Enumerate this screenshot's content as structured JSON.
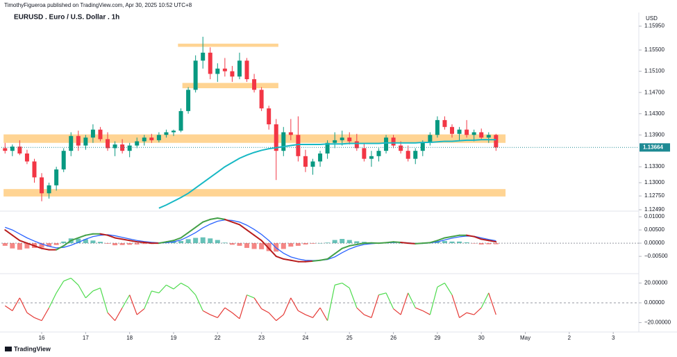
{
  "header": {
    "byline": "TimothyFigueroa published on TradingView.com, Apr 30, 2025 10:52 UTC+8",
    "currency": "USD",
    "footer": "TradingView"
  },
  "chart_data": [
    {
      "type": "candlestick",
      "title": "EURUSD . Euro / U.S. Dollar . 1h",
      "open": [
        1.1365,
        1.136,
        1.1368,
        1.1355,
        1.134,
        1.131,
        1.128,
        1.1295,
        1.1325,
        1.136,
        1.1388,
        1.137,
        1.1385,
        1.14,
        1.1382,
        1.1365,
        1.1372,
        1.136,
        1.137,
        1.1378,
        1.1385,
        1.138,
        1.139,
        1.1395,
        1.1398,
        1.1435,
        1.1475,
        1.153,
        1.1545,
        1.1505,
        1.1515,
        1.151,
        1.15,
        1.153,
        1.1495,
        1.1475,
        1.144,
        1.141,
        1.136,
        1.1395,
        1.139,
        1.135,
        1.133,
        1.134,
        1.1355,
        1.1375,
        1.138,
        1.1385,
        1.1378,
        1.1365,
        1.1345,
        1.135,
        1.136,
        1.1385,
        1.137,
        1.136,
        1.1345,
        1.136,
        1.1375,
        1.139,
        1.1418,
        1.1405,
        1.1392,
        1.14,
        1.139,
        1.1395,
        1.1385,
        1.139
      ],
      "high": [
        1.1375,
        1.1372,
        1.138,
        1.1362,
        1.1345,
        1.1318,
        1.13,
        1.133,
        1.1365,
        1.1395,
        1.1398,
        1.139,
        1.141,
        1.1405,
        1.1395,
        1.1378,
        1.1382,
        1.1375,
        1.1385,
        1.139,
        1.1392,
        1.1395,
        1.14,
        1.14,
        1.144,
        1.148,
        1.154,
        1.1575,
        1.1555,
        1.1525,
        1.1535,
        1.152,
        1.1545,
        1.1535,
        1.1505,
        1.148,
        1.1445,
        1.142,
        1.1405,
        1.142,
        1.1425,
        1.1362,
        1.1345,
        1.136,
        1.138,
        1.1395,
        1.1398,
        1.1395,
        1.1392,
        1.1375,
        1.136,
        1.1365,
        1.139,
        1.139,
        1.1378,
        1.137,
        1.1365,
        1.138,
        1.1395,
        1.1425,
        1.1425,
        1.141,
        1.1405,
        1.1418,
        1.14,
        1.1402,
        1.1395,
        1.1392
      ],
      "low": [
        1.1355,
        1.135,
        1.1352,
        1.1335,
        1.13,
        1.1265,
        1.127,
        1.1285,
        1.132,
        1.135,
        1.136,
        1.1362,
        1.1375,
        1.1378,
        1.136,
        1.135,
        1.1355,
        1.1348,
        1.1365,
        1.137,
        1.1375,
        1.1376,
        1.1385,
        1.1388,
        1.1395,
        1.143,
        1.147,
        1.1515,
        1.1495,
        1.149,
        1.15,
        1.149,
        1.1495,
        1.149,
        1.147,
        1.1435,
        1.14,
        1.1305,
        1.135,
        1.138,
        1.134,
        1.132,
        1.1315,
        1.133,
        1.1345,
        1.1365,
        1.137,
        1.1372,
        1.136,
        1.134,
        1.133,
        1.134,
        1.1355,
        1.1365,
        1.1355,
        1.134,
        1.1335,
        1.135,
        1.137,
        1.1385,
        1.14,
        1.1385,
        1.138,
        1.1385,
        1.1378,
        1.138,
        1.1375,
        1.136
      ],
      "close": [
        1.136,
        1.1368,
        1.1355,
        1.134,
        1.131,
        1.128,
        1.1295,
        1.1325,
        1.136,
        1.1388,
        1.137,
        1.1385,
        1.14,
        1.1382,
        1.1365,
        1.1372,
        1.136,
        1.137,
        1.1378,
        1.1385,
        1.138,
        1.139,
        1.1395,
        1.1398,
        1.1435,
        1.1475,
        1.153,
        1.1545,
        1.1505,
        1.1515,
        1.151,
        1.15,
        1.153,
        1.1495,
        1.1475,
        1.144,
        1.141,
        1.136,
        1.1395,
        1.139,
        1.135,
        1.133,
        1.134,
        1.1355,
        1.1375,
        1.138,
        1.1385,
        1.1378,
        1.1365,
        1.1345,
        1.135,
        1.136,
        1.1385,
        1.137,
        1.136,
        1.1345,
        1.136,
        1.1375,
        1.139,
        1.1418,
        1.1405,
        1.1392,
        1.14,
        1.139,
        1.1395,
        1.1385,
        1.139,
        1.13664
      ],
      "up_color": "#089981",
      "down_color": "#f23645",
      "ma": {
        "color": "#17b8c4",
        "values": [
          null,
          null,
          null,
          null,
          null,
          null,
          null,
          null,
          null,
          null,
          null,
          null,
          null,
          null,
          null,
          null,
          null,
          null,
          null,
          null,
          null,
          1.1252,
          1.1258,
          1.1265,
          1.1272,
          1.128,
          1.129,
          1.13,
          1.131,
          1.132,
          1.133,
          1.1338,
          1.1346,
          1.1352,
          1.1357,
          1.1361,
          1.1364,
          1.1366,
          1.1368,
          1.137,
          1.1372,
          1.1372,
          1.1372,
          1.1372,
          1.1373,
          1.1373,
          1.1373,
          1.1374,
          1.1374,
          1.1374,
          1.1374,
          1.1374,
          1.1375,
          1.1375,
          1.1375,
          1.1375,
          1.1375,
          1.1376,
          1.1376,
          1.1377,
          1.1378,
          1.1378,
          1.1379,
          1.138,
          1.138,
          1.1381,
          1.1381,
          1.1381
        ]
      },
      "zone_color": "#ffcc80",
      "zones": [
        {
          "from": 1.1556,
          "to": 1.1562,
          "start": 23.6,
          "end": 37.3
        },
        {
          "from": 1.1478,
          "to": 1.1488,
          "start": 24.2,
          "end": 37.3
        },
        {
          "from": 1.1375,
          "to": 1.1391,
          "start": -0.2,
          "end": 68.3
        },
        {
          "from": 1.1274,
          "to": 1.1288,
          "start": -0.2,
          "end": 68.3
        }
      ],
      "last_price": {
        "value": 1.13664,
        "label": "1.13664"
      },
      "last_price_color": "#1e8a94",
      "ylim": [
        1.1249,
        1.1605
      ],
      "yticks": [
        {
          "value": 1.1595,
          "label": "1.15950"
        },
        {
          "value": 1.155,
          "label": "1.15500"
        },
        {
          "value": 1.151,
          "label": "1.15100"
        },
        {
          "value": 1.147,
          "label": "1.14700"
        },
        {
          "value": 1.143,
          "label": "1.14300"
        },
        {
          "value": 1.139,
          "label": "1.13900"
        },
        {
          "value": 1.133,
          "label": "1.13300"
        },
        {
          "value": 1.13,
          "label": "1.13000"
        },
        {
          "value": 1.1275,
          "label": "1.12750"
        },
        {
          "value": 1.1249,
          "label": "1.12490"
        }
      ],
      "xlim": [
        -0.5,
        86.3
      ],
      "xticks": [
        {
          "value": 5,
          "label": "16"
        },
        {
          "value": 11,
          "label": "17"
        },
        {
          "value": 17,
          "label": "18"
        },
        {
          "value": 23,
          "label": "19"
        },
        {
          "value": 29,
          "label": "22"
        },
        {
          "value": 35,
          "label": "23"
        },
        {
          "value": 41,
          "label": "24"
        },
        {
          "value": 47,
          "label": "25"
        },
        {
          "value": 53,
          "label": "26"
        },
        {
          "value": 59,
          "label": "29"
        },
        {
          "value": 65,
          "label": "30"
        },
        {
          "value": 71,
          "label": "May"
        },
        {
          "value": 77,
          "label": "2"
        },
        {
          "value": 83,
          "label": "3"
        }
      ]
    },
    {
      "type": "macd",
      "macd": {
        "up_color": "#43a047",
        "down_color": "#b71c1c",
        "values": [
          0.005,
          0.003,
          0.001,
          0,
          -0.001,
          -0.002,
          -0.0025,
          -0.0025,
          -0.001,
          0.001,
          0.002,
          0.003,
          0.0035,
          0.0035,
          0.003,
          0.002,
          0.0015,
          0.001,
          0.0005,
          0.0003,
          0,
          0,
          0.0005,
          0.001,
          0.002,
          0.004,
          0.006,
          0.008,
          0.009,
          0.0095,
          0.009,
          0.008,
          0.007,
          0.005,
          0.003,
          0.001,
          -0.002,
          -0.005,
          -0.006,
          -0.0065,
          -0.007,
          -0.007,
          -0.0068,
          -0.0065,
          -0.006,
          -0.004,
          -0.002,
          -0.001,
          -0.0005,
          0,
          0.0001,
          0,
          0.0002,
          0.0005,
          0.0003,
          0,
          -0.0002,
          0,
          0.0002,
          0.001,
          0.002,
          0.0025,
          0.003,
          0.003,
          0.0025,
          0.0015,
          0.001,
          0.0005
        ]
      },
      "signal": {
        "color": "#2962ff",
        "values": [
          0.006,
          0.005,
          0.0035,
          0.002,
          0.0008,
          -0.0003,
          -0.0012,
          -0.0018,
          -0.0016,
          -0.0008,
          0.0003,
          0.0015,
          0.0025,
          0.003,
          0.0032,
          0.0028,
          0.0022,
          0.0016,
          0.001,
          0.0006,
          0.0003,
          0.0001,
          0.0002,
          0.0005,
          0.0012,
          0.0025,
          0.004,
          0.0058,
          0.0072,
          0.0083,
          0.0088,
          0.0086,
          0.008,
          0.0068,
          0.0052,
          0.0033,
          0.001,
          -0.0018,
          -0.0038,
          -0.0052,
          -0.006,
          -0.0065,
          -0.0066,
          -0.0065,
          -0.0062,
          -0.0052,
          -0.0036,
          -0.0022,
          -0.0012,
          -0.0005,
          -0.0002,
          0,
          0.0001,
          0.0003,
          0.0003,
          0.0001,
          -0.0001,
          -0.0001,
          0.0001,
          0.0005,
          0.0012,
          0.0019,
          0.0024,
          0.0027,
          0.0026,
          0.002,
          0.0014,
          0.0009
        ]
      },
      "histogram": {
        "up_color": "#26a69a",
        "down_color": "#ef5350",
        "values": [
          -0.001,
          -0.002,
          -0.0025,
          -0.002,
          -0.0018,
          -0.0017,
          -0.0013,
          -0.0007,
          0.0006,
          0.0018,
          0.0017,
          0.0015,
          0.001,
          0.0005,
          -0.0002,
          -0.0008,
          -0.0007,
          -0.0006,
          -0.0005,
          -0.0003,
          -0.0003,
          -0.0001,
          0.0003,
          0.0005,
          0.0008,
          0.0015,
          0.002,
          0.0022,
          0.0018,
          0.0012,
          0.0002,
          -0.0006,
          -0.001,
          -0.0018,
          -0.0022,
          -0.0023,
          -0.003,
          -0.0032,
          -0.0022,
          -0.0013,
          -0.001,
          -0.0005,
          -0.0002,
          0,
          0.0002,
          0.0012,
          0.0016,
          0.0012,
          0.0007,
          0.0005,
          0.0003,
          0,
          0.0001,
          0.0002,
          0,
          -0.0001,
          -0.0001,
          0.0001,
          0.0001,
          0.0005,
          0.0008,
          0.0006,
          0.0006,
          0.0003,
          -0.0001,
          -0.0005,
          -0.0004,
          -0.0004
        ]
      },
      "ylim": [
        -0.0105,
        0.0116
      ],
      "yticks": [
        {
          "value": 0.01,
          "label": "0.01000"
        },
        {
          "value": 0.005,
          "label": "0.00500"
        },
        {
          "value": 0,
          "label": "0.00000"
        },
        {
          "value": -0.005,
          "label": "−0.00500"
        }
      ]
    },
    {
      "type": "oscillator",
      "up_color": "#4cdb4c",
      "down_color": "#e53935",
      "values": [
        -3,
        -8,
        5,
        -10,
        -15,
        -18,
        -5,
        10,
        22,
        25,
        18,
        5,
        12,
        15,
        -10,
        -18,
        -5,
        8,
        -12,
        -6,
        12,
        10,
        18,
        14,
        20,
        16,
        8,
        -8,
        -12,
        -15,
        -5,
        -10,
        -16,
        8,
        5,
        -6,
        -10,
        -18,
        -12,
        5,
        -8,
        -12,
        -15,
        -5,
        -18,
        18,
        20,
        15,
        -5,
        -12,
        -15,
        8,
        10,
        -6,
        -12,
        10,
        -5,
        -8,
        -12,
        16,
        20,
        8,
        -15,
        -10,
        -12,
        -5,
        10,
        -12
      ],
      "ylim": [
        -29.5,
        26.7
      ],
      "yticks": [
        {
          "value": 20,
          "label": "20.00000"
        },
        {
          "value": 0,
          "label": "0.00000"
        },
        {
          "value": -20,
          "label": "−20.00000"
        }
      ]
    }
  ]
}
